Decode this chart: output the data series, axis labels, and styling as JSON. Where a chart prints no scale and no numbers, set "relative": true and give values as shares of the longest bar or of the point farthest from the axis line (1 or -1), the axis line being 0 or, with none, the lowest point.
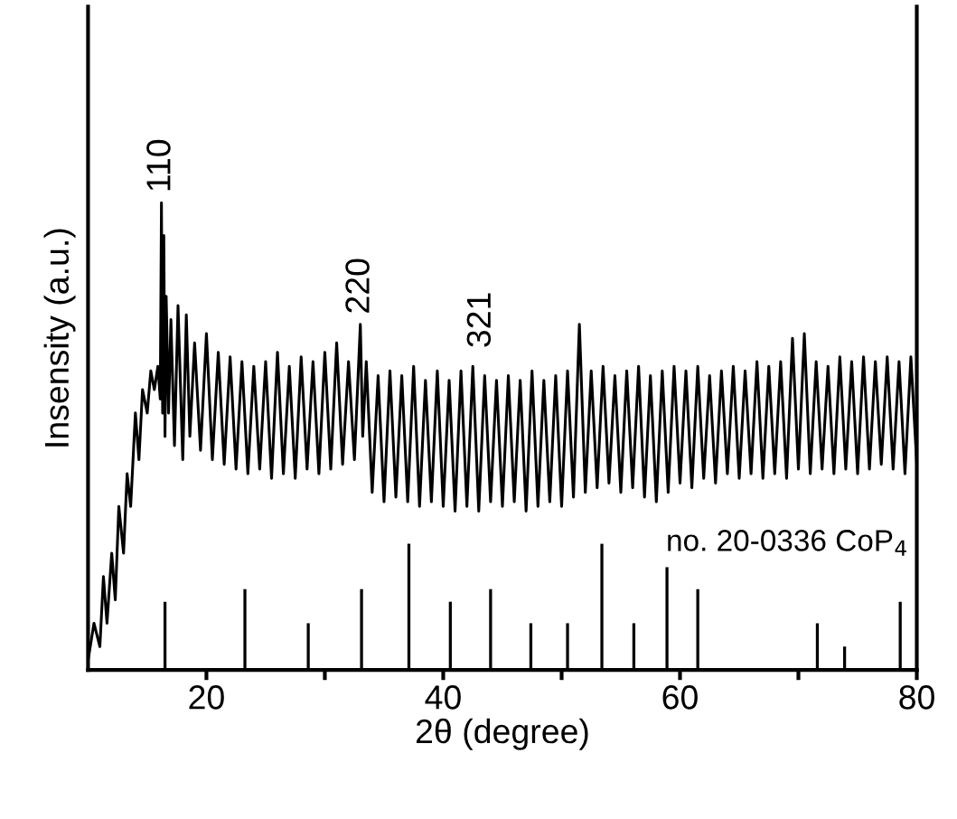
{
  "chart_data": {
    "type": "line",
    "relative": true,
    "xlabel": "2θ (degree)",
    "ylabel": "Insensity (a.u.)",
    "xlim": [
      10,
      80
    ],
    "xticks": [
      20,
      {
        "value": 30,
        "label": null
      },
      40,
      {
        "value": 50,
        "label": null
      },
      60,
      {
        "value": 70,
        "label": null
      },
      80
    ],
    "tick_labels": "x",
    "grid": false,
    "legend": false,
    "annotations": [
      {
        "text": "110",
        "x": 16.2,
        "y": 1.0
      },
      {
        "text": "220",
        "x": 33.0,
        "y": 0.74
      },
      "321",
      "no. 20-0336 CoP$_{4}$"
    ],
    "series": [
      {
        "color": "#000000",
        "x": [
          10,
          10.5,
          11,
          11.3,
          11.6,
          12,
          12.3,
          12.6,
          13,
          13.3,
          13.6,
          14,
          14.3,
          14.6,
          15,
          15.3,
          15.6,
          15.9,
          16.1,
          16.2,
          16.3,
          16.4,
          16.5,
          16.6,
          16.8,
          17,
          17.3,
          17.6,
          18,
          18.3,
          18.6,
          19,
          19.5,
          20,
          20.5,
          21,
          21.5,
          22,
          22.5,
          23,
          23.5,
          24,
          24.5,
          25,
          25.5,
          26,
          26.5,
          27,
          27.5,
          28,
          28.5,
          29,
          29.5,
          30,
          30.5,
          31,
          31.5,
          32,
          32.5,
          33,
          33.2,
          33.5,
          34,
          34.5,
          35,
          35.5,
          36,
          36.5,
          37,
          37.5,
          38,
          38.5,
          39,
          39.5,
          40,
          40.5,
          41,
          41.5,
          42,
          42.5,
          43,
          43.5,
          44,
          44.5,
          45,
          45.5,
          46,
          46.5,
          47,
          47.5,
          48,
          48.5,
          49,
          49.5,
          50,
          50.5,
          51,
          51.5,
          52,
          52.5,
          53,
          53.5,
          54,
          54.5,
          55,
          55.5,
          56,
          56.5,
          57,
          57.5,
          58,
          58.5,
          59,
          59.5,
          60,
          60.5,
          61,
          61.5,
          62,
          62.5,
          63,
          63.5,
          64,
          64.5,
          65,
          65.5,
          66,
          66.5,
          67,
          67.5,
          68,
          68.5,
          69,
          69.5,
          70,
          70.5,
          71,
          71.5,
          72,
          72.5,
          73,
          73.5,
          74,
          74.5,
          75,
          75.5,
          76,
          76.5,
          77,
          77.5,
          78,
          78.5,
          79,
          79.5,
          80
        ],
        "values": [
          0.02,
          0.1,
          0.05,
          0.2,
          0.1,
          0.25,
          0.15,
          0.35,
          0.25,
          0.42,
          0.35,
          0.55,
          0.45,
          0.6,
          0.55,
          0.64,
          0.6,
          0.65,
          0.58,
          1.0,
          0.55,
          0.93,
          0.5,
          0.8,
          0.55,
          0.75,
          0.48,
          0.78,
          0.45,
          0.76,
          0.5,
          0.7,
          0.47,
          0.72,
          0.45,
          0.68,
          0.44,
          0.67,
          0.43,
          0.66,
          0.42,
          0.65,
          0.43,
          0.66,
          0.41,
          0.68,
          0.42,
          0.65,
          0.41,
          0.67,
          0.43,
          0.66,
          0.42,
          0.68,
          0.43,
          0.7,
          0.44,
          0.66,
          0.45,
          0.74,
          0.5,
          0.66,
          0.38,
          0.63,
          0.36,
          0.64,
          0.37,
          0.63,
          0.36,
          0.65,
          0.35,
          0.62,
          0.36,
          0.64,
          0.35,
          0.62,
          0.34,
          0.64,
          0.35,
          0.65,
          0.34,
          0.63,
          0.36,
          0.62,
          0.35,
          0.63,
          0.36,
          0.62,
          0.34,
          0.64,
          0.35,
          0.62,
          0.36,
          0.63,
          0.35,
          0.64,
          0.37,
          0.74,
          0.38,
          0.64,
          0.39,
          0.65,
          0.4,
          0.63,
          0.38,
          0.64,
          0.39,
          0.65,
          0.37,
          0.63,
          0.36,
          0.64,
          0.38,
          0.65,
          0.4,
          0.64,
          0.39,
          0.65,
          0.41,
          0.63,
          0.4,
          0.64,
          0.42,
          0.65,
          0.41,
          0.64,
          0.42,
          0.66,
          0.41,
          0.65,
          0.42,
          0.66,
          0.41,
          0.71,
          0.43,
          0.72,
          0.42,
          0.66,
          0.43,
          0.65,
          0.42,
          0.67,
          0.43,
          0.66,
          0.42,
          0.67,
          0.43,
          0.66,
          0.44,
          0.67,
          0.43,
          0.66,
          0.42,
          0.67,
          0.44
        ]
      },
      {
        "type": "bar",
        "color": "#000000",
        "x": [
          16.5,
          23.25,
          28.6,
          33.1,
          37.1,
          40.6,
          44.0,
          47.4,
          50.5,
          53.4,
          56.1,
          58.9,
          61.5,
          71.6,
          73.9,
          78.6
        ],
        "values": [
          0.146,
          0.173,
          0.1,
          0.173,
          0.27,
          0.146,
          0.173,
          0.1,
          0.1,
          0.27,
          0.1,
          0.22,
          0.173,
          0.1,
          0.05,
          0.146
        ]
      }
    ]
  }
}
